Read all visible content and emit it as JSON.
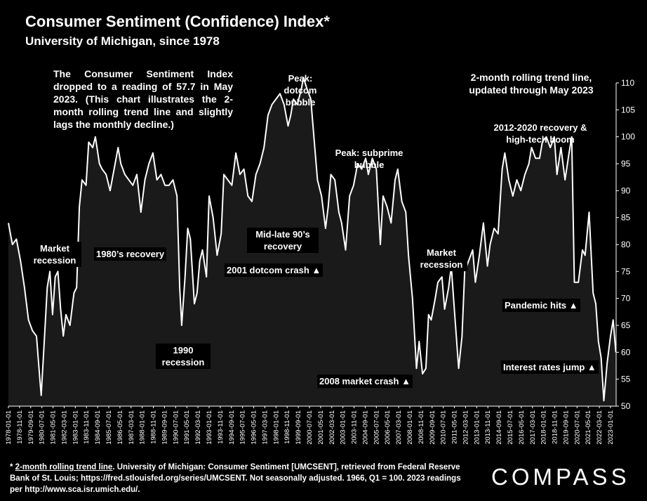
{
  "header": {
    "title": "Consumer Sentiment (Confidence) Index*",
    "subtitle": "University of Michigan, since 1978"
  },
  "notes": {
    "main": "The Consumer Sentiment Index dropped to a reading of 57.7 in May 2023. (This chart illustrates the 2-month rolling trend line and slightly lags the monthly decline.)",
    "trend": "2-month rolling trend line, updated through May 2023"
  },
  "annotations": {
    "market_recession_1": "Market recession",
    "recovery_1980s": "1980’s recovery",
    "recession_1990": "1990 recession",
    "peak_dotcom": "Peak: dotcom bubble",
    "mid_late_90s": "Mid-late 90’s recovery",
    "dotcom_crash_2001": "2001 dotcom crash ▲",
    "peak_subprime": "Peak: subprime bubble",
    "market_crash_2008": "2008 market crash ▲",
    "market_recession_2": "Market recession",
    "recovery_2012": "2012-2020 recovery & high-tech boom",
    "pandemic": "Pandemic hits ▲",
    "interest_rates": "Interest rates jump ▲"
  },
  "footnote": {
    "lead": "* ",
    "link": "2-month rolling trend line",
    "text": ". University of Michigan: Consumer Sentiment [UMCSENT], retrieved from Federal Reserve Bank of St. Louis; https://fred.stlouisfed.org/series/UMCSENT. Not seasonally adjusted. 1966, Q1 = 100. 2023 readings per http://www.sca.isr.umich.edu/."
  },
  "brand": {
    "logo": "COMPASS"
  },
  "colors": {
    "background": "#000000",
    "line": "#ffffff",
    "fill": "#1a1a1a",
    "text": "#ffffff"
  },
  "chart_data": {
    "type": "area",
    "title": "Consumer Sentiment (Confidence) Index*",
    "subtitle": "University of Michigan, since 1978",
    "series_name": "2-month rolling trend line",
    "y_axis_side": "right",
    "ylim": [
      50,
      110
    ],
    "y_ticks": [
      50,
      55,
      60,
      65,
      70,
      75,
      80,
      85,
      90,
      95,
      100,
      105,
      110
    ],
    "x_ticks": [
      "1978-01-01",
      "1978-11-01",
      "1979-09-01",
      "1980-07-01",
      "1981-05-01",
      "1982-03-01",
      "1983-01-01",
      "1983-11-01",
      "1984-09-01",
      "1985-07-01",
      "1986-05-01",
      "1987-03-01",
      "1988-01-01",
      "1988-11-01",
      "1989-09-01",
      "1990-07-01",
      "1991-05-01",
      "1992-03-01",
      "1993-01-01",
      "1993-11-01",
      "1994-09-01",
      "1995-07-01",
      "1996-05-01",
      "1997-03-01",
      "1998-01-01",
      "1998-11-01",
      "1999-09-01",
      "2000-07-01",
      "2001-05-01",
      "2002-03-01",
      "2003-01-01",
      "2003-11-01",
      "2004-09-01",
      "2005-07-01",
      "2006-05-01",
      "2007-03-01",
      "2008-01-01",
      "2008-11-01",
      "2009-09-01",
      "2010-07-01",
      "2011-05-01",
      "2012-03-01",
      "2013-01-01",
      "2013-11-01",
      "2014-09-01",
      "2015-07-01",
      "2016-05-01",
      "2017-03-01",
      "2018-01-01",
      "2018-11-01",
      "2019-09-01",
      "2020-07-01",
      "2021-05-01",
      "2022-03-01",
      "2023-01-01"
    ],
    "points": [
      {
        "x": 1978.0,
        "y": 84
      },
      {
        "x": 1978.3,
        "y": 80
      },
      {
        "x": 1978.6,
        "y": 81
      },
      {
        "x": 1978.9,
        "y": 77
      },
      {
        "x": 1979.2,
        "y": 72
      },
      {
        "x": 1979.5,
        "y": 66
      },
      {
        "x": 1979.8,
        "y": 64
      },
      {
        "x": 1980.1,
        "y": 63
      },
      {
        "x": 1980.35,
        "y": 55
      },
      {
        "x": 1980.45,
        "y": 52
      },
      {
        "x": 1980.7,
        "y": 63
      },
      {
        "x": 1980.9,
        "y": 72
      },
      {
        "x": 1981.1,
        "y": 75
      },
      {
        "x": 1981.3,
        "y": 67
      },
      {
        "x": 1981.5,
        "y": 74
      },
      {
        "x": 1981.7,
        "y": 75
      },
      {
        "x": 1981.9,
        "y": 68
      },
      {
        "x": 1982.1,
        "y": 63
      },
      {
        "x": 1982.3,
        "y": 67
      },
      {
        "x": 1982.6,
        "y": 65
      },
      {
        "x": 1982.9,
        "y": 71
      },
      {
        "x": 1983.1,
        "y": 72
      },
      {
        "x": 1983.3,
        "y": 87
      },
      {
        "x": 1983.5,
        "y": 92
      },
      {
        "x": 1983.8,
        "y": 91
      },
      {
        "x": 1984.0,
        "y": 99
      },
      {
        "x": 1984.3,
        "y": 98
      },
      {
        "x": 1984.5,
        "y": 100
      },
      {
        "x": 1984.8,
        "y": 95
      },
      {
        "x": 1985.0,
        "y": 94
      },
      {
        "x": 1985.3,
        "y": 93
      },
      {
        "x": 1985.6,
        "y": 90
      },
      {
        "x": 1985.9,
        "y": 94
      },
      {
        "x": 1986.2,
        "y": 98
      },
      {
        "x": 1986.4,
        "y": 95
      },
      {
        "x": 1986.7,
        "y": 93
      },
      {
        "x": 1987.0,
        "y": 92
      },
      {
        "x": 1987.3,
        "y": 91
      },
      {
        "x": 1987.6,
        "y": 93
      },
      {
        "x": 1987.9,
        "y": 86
      },
      {
        "x": 1988.2,
        "y": 92
      },
      {
        "x": 1988.5,
        "y": 95
      },
      {
        "x": 1988.8,
        "y": 97
      },
      {
        "x": 1989.1,
        "y": 92
      },
      {
        "x": 1989.4,
        "y": 93
      },
      {
        "x": 1989.7,
        "y": 91
      },
      {
        "x": 1990.0,
        "y": 91
      },
      {
        "x": 1990.3,
        "y": 92
      },
      {
        "x": 1990.6,
        "y": 89
      },
      {
        "x": 1990.8,
        "y": 72
      },
      {
        "x": 1990.95,
        "y": 65
      },
      {
        "x": 1991.2,
        "y": 74
      },
      {
        "x": 1991.4,
        "y": 83
      },
      {
        "x": 1991.6,
        "y": 81
      },
      {
        "x": 1991.9,
        "y": 69
      },
      {
        "x": 1992.1,
        "y": 71
      },
      {
        "x": 1992.3,
        "y": 77
      },
      {
        "x": 1992.5,
        "y": 79
      },
      {
        "x": 1992.8,
        "y": 74
      },
      {
        "x": 1993.0,
        "y": 89
      },
      {
        "x": 1993.3,
        "y": 85
      },
      {
        "x": 1993.6,
        "y": 78
      },
      {
        "x": 1993.9,
        "y": 82
      },
      {
        "x": 1994.1,
        "y": 93
      },
      {
        "x": 1994.4,
        "y": 92
      },
      {
        "x": 1994.7,
        "y": 91
      },
      {
        "x": 1995.0,
        "y": 97
      },
      {
        "x": 1995.3,
        "y": 93
      },
      {
        "x": 1995.6,
        "y": 94
      },
      {
        "x": 1995.9,
        "y": 89
      },
      {
        "x": 1996.2,
        "y": 88
      },
      {
        "x": 1996.5,
        "y": 93
      },
      {
        "x": 1996.8,
        "y": 95
      },
      {
        "x": 1997.1,
        "y": 98
      },
      {
        "x": 1997.4,
        "y": 104
      },
      {
        "x": 1997.7,
        "y": 106
      },
      {
        "x": 1998.0,
        "y": 107
      },
      {
        "x": 1998.3,
        "y": 108
      },
      {
        "x": 1998.6,
        "y": 106
      },
      {
        "x": 1998.9,
        "y": 102
      },
      {
        "x": 1999.1,
        "y": 104
      },
      {
        "x": 1999.3,
        "y": 107
      },
      {
        "x": 1999.6,
        "y": 106
      },
      {
        "x": 1999.9,
        "y": 109
      },
      {
        "x": 2000.05,
        "y": 111
      },
      {
        "x": 2000.3,
        "y": 109
      },
      {
        "x": 2000.6,
        "y": 107
      },
      {
        "x": 2000.9,
        "y": 98
      },
      {
        "x": 2001.1,
        "y": 92
      },
      {
        "x": 2001.4,
        "y": 89
      },
      {
        "x": 2001.7,
        "y": 83
      },
      {
        "x": 2001.9,
        "y": 87
      },
      {
        "x": 2002.1,
        "y": 93
      },
      {
        "x": 2002.4,
        "y": 92
      },
      {
        "x": 2002.7,
        "y": 86
      },
      {
        "x": 2002.9,
        "y": 84
      },
      {
        "x": 2003.2,
        "y": 79
      },
      {
        "x": 2003.5,
        "y": 89
      },
      {
        "x": 2003.8,
        "y": 91
      },
      {
        "x": 2004.1,
        "y": 95
      },
      {
        "x": 2004.4,
        "y": 94
      },
      {
        "x": 2004.7,
        "y": 96
      },
      {
        "x": 2004.9,
        "y": 93
      },
      {
        "x": 2005.2,
        "y": 96
      },
      {
        "x": 2005.5,
        "y": 94
      },
      {
        "x": 2005.8,
        "y": 80
      },
      {
        "x": 2006.0,
        "y": 89
      },
      {
        "x": 2006.3,
        "y": 87
      },
      {
        "x": 2006.6,
        "y": 84
      },
      {
        "x": 2006.9,
        "y": 92
      },
      {
        "x": 2007.1,
        "y": 94
      },
      {
        "x": 2007.4,
        "y": 88
      },
      {
        "x": 2007.7,
        "y": 86
      },
      {
        "x": 2007.9,
        "y": 78
      },
      {
        "x": 2008.2,
        "y": 70
      },
      {
        "x": 2008.5,
        "y": 57
      },
      {
        "x": 2008.7,
        "y": 62
      },
      {
        "x": 2008.95,
        "y": 56
      },
      {
        "x": 2009.2,
        "y": 57
      },
      {
        "x": 2009.4,
        "y": 67
      },
      {
        "x": 2009.6,
        "y": 66
      },
      {
        "x": 2009.9,
        "y": 70
      },
      {
        "x": 2010.1,
        "y": 73
      },
      {
        "x": 2010.4,
        "y": 74
      },
      {
        "x": 2010.6,
        "y": 68
      },
      {
        "x": 2010.9,
        "y": 72
      },
      {
        "x": 2011.1,
        "y": 76
      },
      {
        "x": 2011.3,
        "y": 69
      },
      {
        "x": 2011.65,
        "y": 57
      },
      {
        "x": 2011.9,
        "y": 63
      },
      {
        "x": 2012.1,
        "y": 75
      },
      {
        "x": 2012.4,
        "y": 77
      },
      {
        "x": 2012.7,
        "y": 79
      },
      {
        "x": 2012.9,
        "y": 73
      },
      {
        "x": 2013.2,
        "y": 78
      },
      {
        "x": 2013.5,
        "y": 84
      },
      {
        "x": 2013.8,
        "y": 76
      },
      {
        "x": 2014.0,
        "y": 80
      },
      {
        "x": 2014.3,
        "y": 83
      },
      {
        "x": 2014.6,
        "y": 82
      },
      {
        "x": 2014.9,
        "y": 94
      },
      {
        "x": 2015.1,
        "y": 97
      },
      {
        "x": 2015.4,
        "y": 92
      },
      {
        "x": 2015.7,
        "y": 89
      },
      {
        "x": 2016.0,
        "y": 92
      },
      {
        "x": 2016.3,
        "y": 90
      },
      {
        "x": 2016.6,
        "y": 93
      },
      {
        "x": 2016.9,
        "y": 95
      },
      {
        "x": 2017.1,
        "y": 98
      },
      {
        "x": 2017.4,
        "y": 96
      },
      {
        "x": 2017.7,
        "y": 96
      },
      {
        "x": 2017.9,
        "y": 99
      },
      {
        "x": 2018.2,
        "y": 100
      },
      {
        "x": 2018.5,
        "y": 98
      },
      {
        "x": 2018.8,
        "y": 100
      },
      {
        "x": 2019.0,
        "y": 93
      },
      {
        "x": 2019.3,
        "y": 98
      },
      {
        "x": 2019.6,
        "y": 92
      },
      {
        "x": 2019.9,
        "y": 97
      },
      {
        "x": 2020.1,
        "y": 100
      },
      {
        "x": 2020.3,
        "y": 73
      },
      {
        "x": 2020.6,
        "y": 73
      },
      {
        "x": 2020.9,
        "y": 79
      },
      {
        "x": 2021.1,
        "y": 78
      },
      {
        "x": 2021.4,
        "y": 86
      },
      {
        "x": 2021.7,
        "y": 71
      },
      {
        "x": 2021.9,
        "y": 69
      },
      {
        "x": 2022.1,
        "y": 62
      },
      {
        "x": 2022.3,
        "y": 59
      },
      {
        "x": 2022.5,
        "y": 51
      },
      {
        "x": 2022.75,
        "y": 58
      },
      {
        "x": 2023.0,
        "y": 63
      },
      {
        "x": 2023.2,
        "y": 66
      },
      {
        "x": 2023.4,
        "y": 60
      }
    ]
  }
}
